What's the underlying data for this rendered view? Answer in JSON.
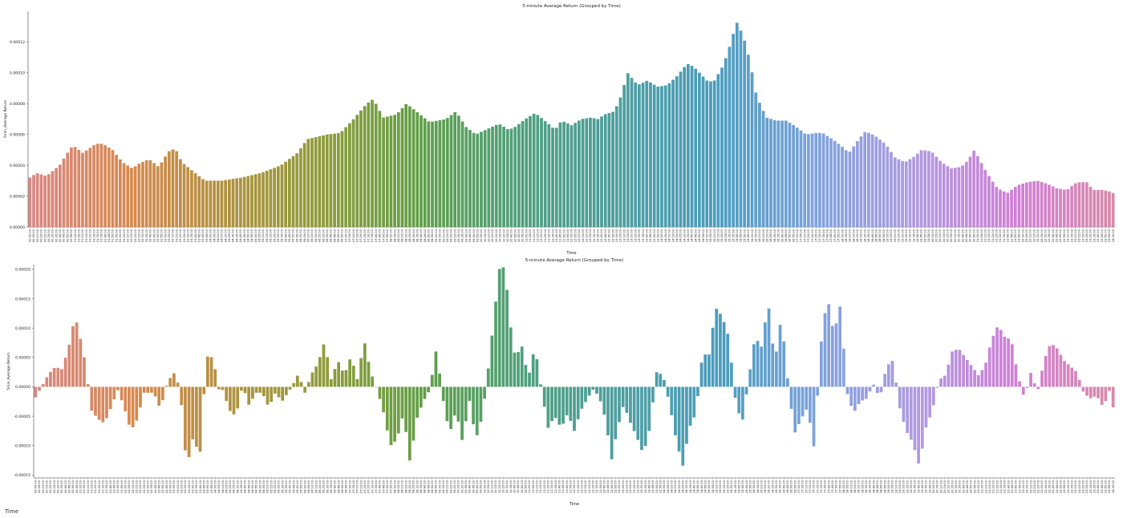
{
  "footer_label": "Time",
  "palette": {
    "start": "#d88884",
    "stops": [
      "#d88884",
      "#d7894f",
      "#b0923e",
      "#8e9c3a",
      "#5f9f48",
      "#4ea07e",
      "#4d9ea0",
      "#4a9dbe",
      "#7fa3de",
      "#b09ae0",
      "#d07fd6",
      "#d88aaa"
    ]
  },
  "chart_data": [
    {
      "type": "bar",
      "title": "5-minute Average Return (Grouped by Time)",
      "xlabel": "Time",
      "ylabel": "5min_Average Return",
      "ylim": [
        0,
        0.00014
      ],
      "yticks": [
        0,
        2e-05,
        4e-05,
        6e-05,
        8e-05,
        0.0001,
        0.00012
      ],
      "ytick_labels": [
        "0.00000",
        "0.00002",
        "0.00004",
        "0.00006",
        "0.00008",
        "0.00010",
        "0.00012"
      ],
      "anchors": [
        [
          0,
          3.2e-05
        ],
        [
          2,
          3.5e-05
        ],
        [
          5,
          3.3e-05
        ],
        [
          9,
          4e-05
        ],
        [
          11,
          4.7e-05
        ],
        [
          13,
          5.3e-05
        ],
        [
          16,
          4.8e-05
        ],
        [
          20,
          5.4e-05
        ],
        [
          22,
          5.4e-05
        ],
        [
          25,
          5e-05
        ],
        [
          28,
          4.2e-05
        ],
        [
          31,
          3.8e-05
        ],
        [
          33,
          4.1e-05
        ],
        [
          36,
          4.4e-05
        ],
        [
          39,
          3.9e-05
        ],
        [
          42,
          4.9e-05
        ],
        [
          44,
          5.1e-05
        ],
        [
          46,
          4.2e-05
        ],
        [
          50,
          3.5e-05
        ],
        [
          53,
          3e-05
        ],
        [
          58,
          3e-05
        ],
        [
          64,
          3.2e-05
        ],
        [
          70,
          3.5e-05
        ],
        [
          76,
          4e-05
        ],
        [
          81,
          4.8e-05
        ],
        [
          84,
          5.7e-05
        ],
        [
          90,
          6e-05
        ],
        [
          94,
          6.1e-05
        ],
        [
          98,
          7e-05
        ],
        [
          102,
          8e-05
        ],
        [
          104,
          8.3e-05
        ],
        [
          107,
          7.1e-05
        ],
        [
          111,
          7.3e-05
        ],
        [
          114,
          8e-05
        ],
        [
          117,
          7.5e-05
        ],
        [
          121,
          6.8e-05
        ],
        [
          126,
          7e-05
        ],
        [
          129,
          7.5e-05
        ],
        [
          132,
          6.5e-05
        ],
        [
          135,
          6e-05
        ],
        [
          139,
          6.4e-05
        ],
        [
          142,
          6.7e-05
        ],
        [
          145,
          6.3e-05
        ],
        [
          147,
          6.5e-05
        ],
        [
          150,
          7e-05
        ],
        [
          153,
          7.4e-05
        ],
        [
          157,
          6.7e-05
        ],
        [
          159,
          6.3e-05
        ],
        [
          161,
          6.9e-05
        ],
        [
          164,
          6.6e-05
        ],
        [
          167,
          7e-05
        ],
        [
          170,
          7.1e-05
        ],
        [
          172,
          7e-05
        ],
        [
          174,
          7.3e-05
        ],
        [
          177,
          7.5e-05
        ],
        [
          179,
          8.5e-05
        ],
        [
          181,
          0.0001
        ],
        [
          184,
          9.2e-05
        ],
        [
          187,
          9.5e-05
        ],
        [
          190,
          9.1e-05
        ],
        [
          193,
          9.2e-05
        ],
        [
          196,
          9.8e-05
        ],
        [
          199,
          0.000106
        ],
        [
          201,
          0.000104
        ],
        [
          205,
          9.5e-05
        ],
        [
          207,
          9.4e-05
        ],
        [
          210,
          0.000105
        ],
        [
          212,
          0.000118
        ],
        [
          214,
          0.000133
        ],
        [
          216,
          0.000124
        ],
        [
          218,
          0.000108
        ],
        [
          220,
          8.5e-05
        ],
        [
          223,
          7.1e-05
        ],
        [
          226,
          6.9e-05
        ],
        [
          229,
          6.9e-05
        ],
        [
          232,
          6.5e-05
        ],
        [
          235,
          6e-05
        ],
        [
          238,
          6.1e-05
        ],
        [
          240,
          6.1e-05
        ],
        [
          243,
          5.7e-05
        ],
        [
          246,
          5.2e-05
        ],
        [
          248,
          4.8e-05
        ],
        [
          251,
          5.7e-05
        ],
        [
          253,
          6.2e-05
        ],
        [
          256,
          5.9e-05
        ],
        [
          259,
          5.4e-05
        ],
        [
          262,
          4.5e-05
        ],
        [
          265,
          4.2e-05
        ],
        [
          268,
          4.6e-05
        ],
        [
          270,
          5e-05
        ],
        [
          273,
          4.9e-05
        ],
        [
          276,
          4.2e-05
        ],
        [
          279,
          3.8e-05
        ],
        [
          282,
          3.9e-05
        ],
        [
          284,
          4.3e-05
        ],
        [
          286,
          5e-05
        ],
        [
          289,
          3.8e-05
        ],
        [
          291,
          3.1e-05
        ],
        [
          293,
          2.5e-05
        ],
        [
          296,
          2.2e-05
        ],
        [
          299,
          2.7e-05
        ],
        [
          302,
          2.9e-05
        ],
        [
          305,
          3e-05
        ],
        [
          308,
          2.8e-05
        ],
        [
          311,
          2.5e-05
        ],
        [
          314,
          2.4e-05
        ],
        [
          317,
          2.9e-05
        ],
        [
          320,
          2.9e-05
        ],
        [
          322,
          2.4e-05
        ],
        [
          325,
          2.4e-05
        ],
        [
          327,
          2.3e-05
        ],
        [
          328,
          2.2e-05
        ]
      ]
    },
    {
      "type": "bar",
      "title": "5-minute Average Return (Grouped by Time)",
      "xlabel": "Time",
      "ylabel": "5min_Average Return",
      "ylim": [
        -0.000155,
        0.000208
      ],
      "yticks": [
        -0.00015,
        -0.0001,
        -5e-05,
        0,
        5e-05,
        0.0001,
        0.00015,
        0.0002
      ],
      "ytick_labels": [
        "-0.00015",
        "-0.00010",
        "-0.00005",
        "0.00000",
        "0.00005",
        "0.00010",
        "0.00015",
        "0.00020"
      ],
      "anchors": [
        [
          0,
          -1.8e-05
        ],
        [
          2,
          2e-06
        ],
        [
          4,
          2.2e-05
        ],
        [
          6,
          3.4e-05
        ],
        [
          8,
          3e-05
        ],
        [
          10,
          6.5e-05
        ],
        [
          12,
          0.00012
        ],
        [
          13,
          0.0001
        ],
        [
          15,
          4.5e-05
        ],
        [
          17,
          -4e-05
        ],
        [
          19,
          -5.5e-05
        ],
        [
          21,
          -6.2e-05
        ],
        [
          23,
          -3.5e-05
        ],
        [
          25,
          -5e-06
        ],
        [
          27,
          -3.5e-05
        ],
        [
          29,
          -7.5e-05
        ],
        [
          31,
          -5.5e-05
        ],
        [
          33,
          -1e-05
        ],
        [
          36,
          -1e-05
        ],
        [
          38,
          -3.8e-05
        ],
        [
          40,
          5e-06
        ],
        [
          42,
          2.5e-05
        ],
        [
          44,
          -3e-06
        ],
        [
          46,
          -0.000138
        ],
        [
          48,
          -8.5e-05
        ],
        [
          50,
          -0.00012
        ],
        [
          52,
          5.2e-05
        ],
        [
          54,
          5e-05
        ],
        [
          56,
          -1e-05
        ],
        [
          57,
          -5e-06
        ],
        [
          59,
          -4e-05
        ],
        [
          61,
          -5e-05
        ],
        [
          63,
          3e-06
        ],
        [
          65,
          -3.2e-05
        ],
        [
          67,
          -1e-05
        ],
        [
          69,
          -1e-05
        ],
        [
          71,
          -3.5e-05
        ],
        [
          73,
          -1e-05
        ],
        [
          75,
          -2.5e-05
        ],
        [
          78,
          0
        ],
        [
          80,
          2.2e-05
        ],
        [
          82,
          -1e-05
        ],
        [
          84,
          2.2e-05
        ],
        [
          86,
          4e-05
        ],
        [
          88,
          7.8e-05
        ],
        [
          90,
          1.2e-05
        ],
        [
          92,
          4.5e-05
        ],
        [
          94,
          2e-05
        ],
        [
          96,
          5.2e-05
        ],
        [
          98,
          1.2e-05
        ],
        [
          100,
          8e-05
        ],
        [
          102,
          2.5e-05
        ],
        [
          104,
          -5e-06
        ],
        [
          106,
          -4.5e-05
        ],
        [
          108,
          -0.0001
        ],
        [
          110,
          -9e-05
        ],
        [
          112,
          -4.5e-05
        ],
        [
          114,
          -0.00013
        ],
        [
          116,
          -5.5e-05
        ],
        [
          118,
          -2.5e-05
        ],
        [
          120,
          -5e-06
        ],
        [
          122,
          6.5e-05
        ],
        [
          124,
          -2e-05
        ],
        [
          126,
          -8e-05
        ],
        [
          128,
          -4e-05
        ],
        [
          130,
          -9.5e-05
        ],
        [
          132,
          -2e-05
        ],
        [
          134,
          -9e-05
        ],
        [
          136,
          -5e-05
        ],
        [
          138,
          4e-05
        ],
        [
          140,
          0.00014
        ],
        [
          141,
          0.0002
        ],
        [
          143,
          0.000205
        ],
        [
          144,
          0.000125
        ],
        [
          146,
          5e-05
        ],
        [
          148,
          7e-05
        ],
        [
          150,
          1.5e-05
        ],
        [
          152,
          7e-05
        ],
        [
          154,
          -5e-06
        ],
        [
          156,
          -7e-05
        ],
        [
          158,
          -5e-05
        ],
        [
          160,
          -7e-05
        ],
        [
          162,
          -4.5e-05
        ],
        [
          164,
          -7.5e-05
        ],
        [
          166,
          -4e-05
        ],
        [
          168,
          -2e-05
        ],
        [
          170,
          -2e-06
        ],
        [
          172,
          -2.5e-05
        ],
        [
          174,
          -6.5e-05
        ],
        [
          175,
          -0.000135
        ],
        [
          177,
          -7.5e-05
        ],
        [
          179,
          -3e-05
        ],
        [
          181,
          -6e-05
        ],
        [
          183,
          -8.5e-05
        ],
        [
          185,
          -0.000115
        ],
        [
          187,
          -7e-05
        ],
        [
          189,
          2.5e-05
        ],
        [
          191,
          2e-05
        ],
        [
          193,
          -3e-05
        ],
        [
          195,
          -9e-05
        ],
        [
          197,
          -0.000135
        ],
        [
          199,
          -7e-05
        ],
        [
          201,
          -4.5e-05
        ],
        [
          203,
          5.5e-05
        ],
        [
          205,
          5.5e-05
        ],
        [
          207,
          0.000135
        ],
        [
          209,
          0.00012
        ],
        [
          211,
          8.5e-05
        ],
        [
          213,
          -2e-05
        ],
        [
          215,
          -6.5e-05
        ],
        [
          217,
          1e-05
        ],
        [
          219,
          8.5e-05
        ],
        [
          221,
          6.8e-05
        ],
        [
          223,
          0.000145
        ],
        [
          225,
          4e-05
        ],
        [
          227,
          0.00012
        ],
        [
          229,
          1e-05
        ],
        [
          231,
          -8e-05
        ],
        [
          233,
          -5.5e-05
        ],
        [
          235,
          -3.5e-05
        ],
        [
          237,
          -0.000105
        ],
        [
          239,
          7e-05
        ],
        [
          241,
          0.000155
        ],
        [
          243,
          9e-05
        ],
        [
          245,
          0.00014
        ],
        [
          247,
          -1e-05
        ],
        [
          249,
          -4.5e-05
        ],
        [
          251,
          -2.5e-05
        ],
        [
          253,
          -2e-05
        ],
        [
          255,
          5e-06
        ],
        [
          257,
          -2e-05
        ],
        [
          259,
          3.5e-05
        ],
        [
          261,
          4.5e-05
        ],
        [
          263,
          -3.5e-05
        ],
        [
          265,
          -7.5e-05
        ],
        [
          267,
          -9.5e-05
        ],
        [
          269,
          -0.000135
        ],
        [
          271,
          -7e-05
        ],
        [
          273,
          -4e-05
        ],
        [
          275,
          1.2e-05
        ],
        [
          277,
          2e-05
        ],
        [
          279,
          6e-05
        ],
        [
          281,
          6.5e-05
        ],
        [
          283,
          5e-05
        ],
        [
          285,
          3.5e-05
        ],
        [
          287,
          2e-05
        ],
        [
          289,
          3.5e-05
        ],
        [
          291,
          8e-05
        ],
        [
          293,
          0.000105
        ],
        [
          295,
          8.5e-05
        ],
        [
          297,
          8e-05
        ],
        [
          299,
          2e-05
        ],
        [
          301,
          -2e-05
        ],
        [
          303,
          2.5e-05
        ],
        [
          305,
          -1e-05
        ],
        [
          307,
          4.5e-05
        ],
        [
          309,
          7.5e-05
        ],
        [
          311,
          6.5e-05
        ],
        [
          313,
          4.5e-05
        ],
        [
          315,
          3.5e-05
        ],
        [
          317,
          2.5e-05
        ],
        [
          319,
          -1e-05
        ],
        [
          321,
          -2e-05
        ],
        [
          323,
          -1.5e-05
        ],
        [
          325,
          -3.5e-05
        ],
        [
          327,
          -5e-06
        ],
        [
          328,
          -3.5e-05
        ]
      ]
    }
  ]
}
